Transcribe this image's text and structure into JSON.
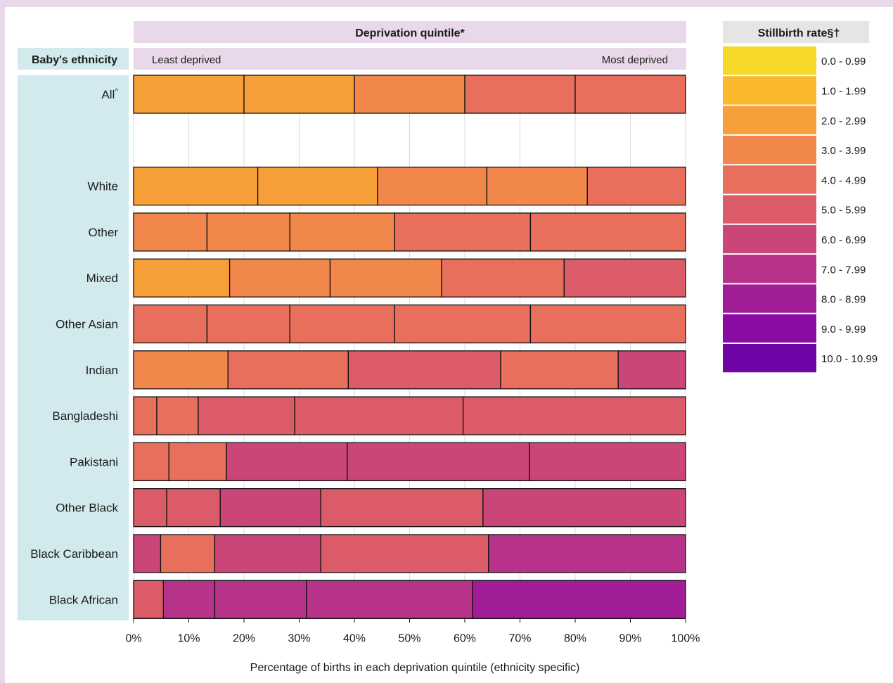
{
  "chart_data": {
    "type": "bar",
    "stacked": true,
    "orientation": "horizontal",
    "header": "Deprivation quintile*",
    "row_header": "Baby's ethnicity",
    "left_end_label": "Least deprived",
    "right_end_label": "Most deprived",
    "xlabel": "Percentage of births in each deprivation quintile (ethnicity specific)",
    "xlim": [
      0,
      100
    ],
    "x_ticks": [
      "0%",
      "10%",
      "20%",
      "30%",
      "40%",
      "50%",
      "60%",
      "70%",
      "80%",
      "90%",
      "100%"
    ],
    "grid": true,
    "legend": {
      "title": "Stillbirth rate§†",
      "placement": "right",
      "bins": [
        {
          "label": "0.0 - 0.99",
          "color": "#f6d928"
        },
        {
          "label": "1.0 - 1.99",
          "color": "#fcb82c"
        },
        {
          "label": "2.0 - 2.99",
          "color": "#f79f39"
        },
        {
          "label": "3.0 - 3.99",
          "color": "#f2874c"
        },
        {
          "label": "4.0 - 4.99",
          "color": "#e76f5b"
        },
        {
          "label": "5.0 - 5.99",
          "color": "#db5b68"
        },
        {
          "label": "6.0 - 6.99",
          "color": "#cb4678"
        },
        {
          "label": "7.0 - 7.99",
          "color": "#b73389"
        },
        {
          "label": "8.0 - 8.99",
          "color": "#a11d98"
        },
        {
          "label": "9.0 - 9.99",
          "color": "#890ba3"
        },
        {
          "label": "10.0 - 10.99",
          "color": "#6f04a7"
        }
      ]
    },
    "rows": [
      {
        "label": "All",
        "label_suffix": "^",
        "segments": [
          20,
          20,
          20,
          20,
          20
        ],
        "rate_bins": [
          2,
          2,
          3,
          4,
          4
        ]
      },
      {
        "label": "",
        "segments": [],
        "rate_bins": []
      },
      {
        "label": "White",
        "segments": [
          22.5,
          21.7,
          19.8,
          18.2,
          17.8
        ],
        "rate_bins": [
          2,
          2,
          3,
          3,
          4
        ]
      },
      {
        "label": "Other",
        "segments": [
          13.3,
          15.0,
          19.0,
          24.6,
          28.1
        ],
        "rate_bins": [
          3,
          3,
          3,
          4,
          4
        ]
      },
      {
        "label": "Mixed",
        "segments": [
          17.4,
          18.2,
          20.2,
          22.2,
          22.0
        ],
        "rate_bins": [
          2,
          3,
          3,
          4,
          5
        ]
      },
      {
        "label": "Other Asian",
        "segments": [
          13.3,
          15.0,
          19.0,
          24.6,
          28.1
        ],
        "rate_bins": [
          4,
          4,
          4,
          4,
          4
        ]
      },
      {
        "label": "Indian",
        "segments": [
          17.1,
          21.8,
          27.6,
          21.3,
          12.2
        ],
        "rate_bins": [
          3,
          4,
          5,
          4,
          6
        ]
      },
      {
        "label": "Bangladeshi",
        "segments": [
          4.2,
          7.5,
          17.5,
          30.5,
          40.3
        ],
        "rate_bins": [
          4,
          4,
          5,
          5,
          5
        ]
      },
      {
        "label": "Pakistani",
        "segments": [
          6.4,
          10.4,
          21.9,
          33.0,
          28.3
        ],
        "rate_bins": [
          4,
          4,
          6,
          6,
          6
        ]
      },
      {
        "label": "Other Black",
        "segments": [
          6.0,
          9.7,
          18.2,
          29.4,
          36.7
        ],
        "rate_bins": [
          5,
          5,
          6,
          5,
          6
        ]
      },
      {
        "label": "Black Caribbean",
        "segments": [
          4.9,
          9.8,
          19.2,
          30.4,
          35.7
        ],
        "rate_bins": [
          6,
          4,
          6,
          5,
          7
        ]
      },
      {
        "label": "Black African",
        "segments": [
          5.4,
          9.3,
          16.6,
          30.1,
          38.6
        ],
        "rate_bins": [
          5,
          7,
          7,
          7,
          8
        ]
      }
    ]
  }
}
